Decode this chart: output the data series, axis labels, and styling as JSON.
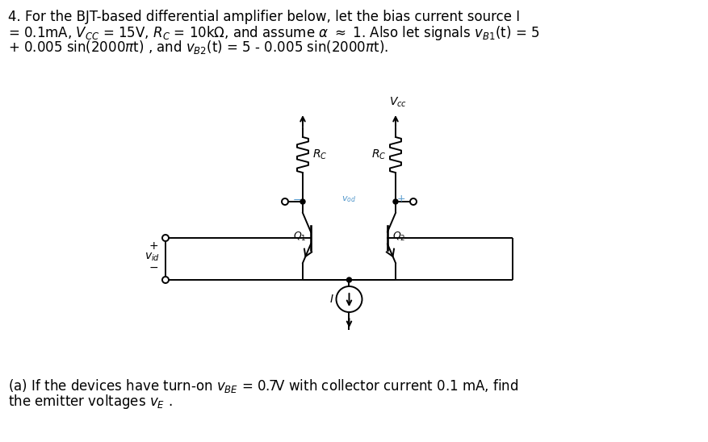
{
  "bg_color": "#ffffff",
  "text_color": "#000000",
  "circuit_color": "#000000",
  "vod_color": "#5599cc",
  "figsize": [
    8.78,
    5.48
  ],
  "dpi": 100,
  "top_line1": "4. For the BJT-based differential amplifier below, let the bias current source I",
  "top_line2": "= 0.1mA, $V_{CC}$ = 15V, $R_C$ = 10k$\\Omega$, and assume $\\alpha$ $\\approx$ 1. Also let signals $v_{B1}$(t) = 5",
  "top_line3": "+ 0.005 sin(2000$\\pi$t) , and $v_{B2}$(t) = 5 - 0.005 sin(2000$\\pi$t).",
  "bottom_line1": "(a) If the devices have turn-on $v_{BE}$ = 0.7V with collector current 0.1 mA, find",
  "bottom_line2": "the emitter voltages $v_E$ ."
}
